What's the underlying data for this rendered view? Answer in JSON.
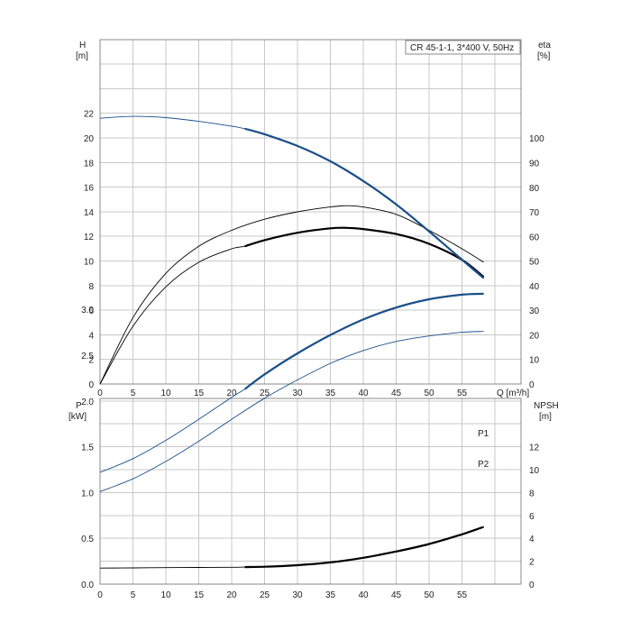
{
  "chart_data": [
    {
      "type": "line",
      "title": "CR 45-1-1, 3*400 V, 50Hz",
      "xlabel": "Q [m³/h]",
      "xlim": [
        0,
        60
      ],
      "xticks": [
        0,
        5,
        10,
        15,
        20,
        25,
        30,
        35,
        40,
        45,
        50,
        55
      ],
      "y_left": {
        "label_top": "H",
        "label_unit": "[m]",
        "lim": [
          0,
          22
        ],
        "ticks": [
          0,
          2,
          4,
          6,
          8,
          10,
          12,
          14,
          16,
          18,
          20,
          22
        ]
      },
      "y_right": {
        "label_top": "eta",
        "label_unit": "[%]",
        "lim": [
          0,
          100
        ],
        "ticks": [
          0,
          10,
          20,
          30,
          40,
          50,
          60,
          70,
          80,
          90,
          100
        ]
      },
      "grid": true,
      "series": [
        {
          "axis": "left",
          "color": "#1a4f8a",
          "x": [
            0,
            5,
            10,
            15,
            20,
            22,
            25,
            30,
            35,
            40,
            45,
            50,
            55,
            58.3
          ],
          "y": [
            21.6,
            21.75,
            21.65,
            21.35,
            20.95,
            20.75,
            20.3,
            19.35,
            18.1,
            16.5,
            14.6,
            12.4,
            10.1,
            8.6
          ]
        },
        {
          "axis": "right",
          "color": "#000000",
          "x": [
            0,
            5,
            10,
            15,
            20,
            25,
            30,
            35,
            37.5,
            40,
            45,
            50,
            55,
            58.3
          ],
          "y": [
            0,
            27,
            45,
            56,
            62.5,
            67,
            70,
            72,
            72.5,
            72,
            69,
            62.5,
            55,
            49.5
          ]
        },
        {
          "axis": "right",
          "color": "#000000",
          "x": [
            0,
            5,
            10,
            15,
            20,
            22,
            25,
            30,
            35,
            37.5,
            40,
            45,
            50,
            55,
            58.3
          ],
          "y": [
            0,
            23.5,
            39.5,
            49.5,
            55,
            56,
            58.5,
            61.5,
            63.3,
            63.5,
            63,
            61,
            57,
            50.5,
            43.5
          ]
        }
      ]
    },
    {
      "type": "line",
      "xlim": [
        0,
        60
      ],
      "xticks": [
        0,
        5,
        10,
        15,
        20,
        25,
        30,
        35,
        40,
        45,
        50,
        55
      ],
      "y_left": {
        "label_top": "P",
        "label_unit": "[kW]",
        "lim": [
          0,
          3.5
        ],
        "ticks": [
          "0.0",
          "0.5",
          "1.0",
          "1.5",
          "2.0",
          "2.5",
          "3.0"
        ]
      },
      "y_right": {
        "label_top": "NPSH",
        "label_unit": "[m]",
        "lim": [
          0,
          16
        ],
        "ticks": [
          0,
          2,
          4,
          6,
          8,
          10,
          12
        ]
      },
      "grid": true,
      "series": [
        {
          "name": "P1",
          "axis": "left",
          "color": "#1a4f8a",
          "x": [
            0,
            5,
            10,
            15,
            20,
            22,
            25,
            30,
            35,
            40,
            45,
            50,
            55,
            58.3
          ],
          "y": [
            1.22,
            1.37,
            1.57,
            1.8,
            2.04,
            2.13,
            2.29,
            2.52,
            2.72,
            2.89,
            3.02,
            3.11,
            3.16,
            3.17
          ]
        },
        {
          "name": "P2",
          "axis": "left",
          "color": "#1a4f8a",
          "x": [
            0,
            5,
            10,
            15,
            20,
            25,
            30,
            35,
            40,
            45,
            50,
            55,
            58.3
          ],
          "y": [
            1.01,
            1.15,
            1.34,
            1.56,
            1.8,
            2.03,
            2.23,
            2.41,
            2.55,
            2.65,
            2.71,
            2.75,
            2.76
          ]
        },
        {
          "axis": "right",
          "color": "#000000",
          "x": [
            0,
            5,
            10,
            15,
            20,
            22,
            25,
            30,
            35,
            40,
            45,
            50,
            55,
            58.3
          ],
          "y": [
            1.4,
            1.42,
            1.44,
            1.46,
            1.47,
            1.49,
            1.52,
            1.65,
            1.9,
            2.3,
            2.85,
            3.5,
            4.35,
            5.0
          ]
        }
      ]
    }
  ]
}
